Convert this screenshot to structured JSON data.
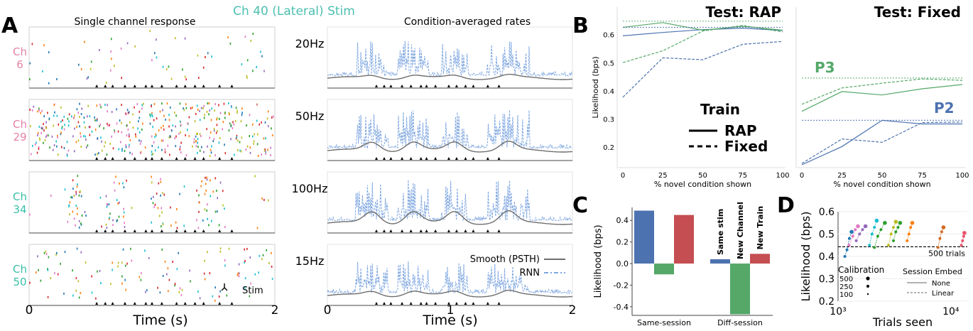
{
  "panel_letters": {
    "a": "A",
    "b": "B",
    "c": "C",
    "d": "D"
  },
  "panel_a": {
    "title": "Ch 40 (Lateral) Stim",
    "left_title": "Single channel response",
    "right_title": "Condition-averaged rates",
    "channels": [
      {
        "label": "Ch\n6",
        "color": "#e382a8"
      },
      {
        "label": "Ch\n29",
        "color": "#e382a8"
      },
      {
        "label": "Ch\n34",
        "color": "#3bbfa8"
      },
      {
        "label": "Ch\n50",
        "color": "#3bbfa8"
      }
    ],
    "conditions": [
      "20Hz",
      "50Hz",
      "100Hz",
      "15Hz"
    ],
    "xlabel": "Time (s)",
    "xticks": [
      "0",
      "1",
      "2"
    ],
    "stim_label": "Stim",
    "legend": {
      "smooth": "Smooth (PSTH)",
      "rnn": "RNN"
    }
  },
  "colors": {
    "blue": "#4c72b0",
    "green": "#55a868",
    "red": "#c44e52",
    "light_blue": "#7ea6e0",
    "gray": "#6e6e6e",
    "teal": "#4dbfb0"
  },
  "chart_data": [
    {
      "type": "line",
      "title": "Test: RAP",
      "xlabel": "% novel condition shown",
      "ylabel": "Likelihood (bps)",
      "x": [
        0,
        25,
        50,
        75,
        100
      ],
      "ylim": [
        0.13,
        0.7
      ],
      "yticks": [
        0.2,
        0.3,
        0.4,
        0.5,
        0.6
      ],
      "series": [
        {
          "color": "blue",
          "style": "solid",
          "values": [
            0.598,
            0.61,
            0.62,
            0.625,
            0.617
          ]
        },
        {
          "color": "blue",
          "style": "dashed",
          "values": [
            0.38,
            0.52,
            0.513,
            0.568,
            0.578
          ]
        },
        {
          "color": "green",
          "style": "solid",
          "values": [
            0.628,
            0.645,
            0.618,
            0.632,
            0.618
          ]
        },
        {
          "color": "green",
          "style": "dashed",
          "values": [
            0.503,
            0.545,
            0.615,
            0.635,
            0.612
          ]
        },
        {
          "color": "green",
          "style": "dotted",
          "values": [
            0.65,
            0.65,
            0.65,
            0.65,
            0.65
          ]
        },
        {
          "color": "blue",
          "style": "dotted",
          "values": [
            0.628,
            0.628,
            0.628,
            0.628,
            0.628
          ]
        }
      ],
      "legend": {
        "title": "Train",
        "rap": "RAP",
        "fixed": "Fixed"
      }
    },
    {
      "type": "line",
      "title": "Test: Fixed",
      "xlabel": "% novel condition shown",
      "x": [
        0,
        25,
        50,
        75,
        100
      ],
      "ylim": [
        0.13,
        0.7
      ],
      "series": [
        {
          "name": "P3",
          "color": "green",
          "style": "solid",
          "values": [
            0.33,
            0.4,
            0.388,
            0.41,
            0.425
          ]
        },
        {
          "color": "green",
          "style": "dashed",
          "values": [
            0.355,
            0.413,
            0.43,
            0.445,
            0.44
          ]
        },
        {
          "color": "green",
          "style": "dotted",
          "values": [
            0.448,
            0.448,
            0.448,
            0.448,
            0.448
          ]
        },
        {
          "name": "P2",
          "color": "blue",
          "style": "solid",
          "values": [
            0.14,
            0.205,
            0.298,
            0.285,
            0.285
          ]
        },
        {
          "color": "blue",
          "style": "dashed",
          "values": [
            0.145,
            0.232,
            0.22,
            0.29,
            0.292
          ]
        },
        {
          "color": "blue",
          "style": "dotted",
          "values": [
            0.298,
            0.298,
            0.298,
            0.298,
            0.298
          ]
        }
      ]
    },
    {
      "type": "bar",
      "ylabel": "Likelihood (bps)",
      "categories": [
        "Same-session",
        "Diff-session"
      ],
      "ylim": [
        -0.48,
        0.52
      ],
      "yticks": [
        -0.4,
        -0.2,
        0.0,
        0.2,
        0.4
      ],
      "series": [
        {
          "name": "Same stim",
          "color": "blue",
          "values": [
            0.49,
            0.04
          ]
        },
        {
          "name": "New Channel",
          "color": "green",
          "values": [
            -0.1,
            -0.47
          ]
        },
        {
          "name": "New Train",
          "color": "red",
          "values": [
            0.45,
            0.09
          ]
        }
      ]
    },
    {
      "type": "scatter",
      "xlabel": "Trials seen",
      "ylabel": "Likelihood (bps)",
      "xscale": "log",
      "xlim": [
        1000,
        14000
      ],
      "ylim": [
        0.2,
        0.6
      ],
      "yticks": [
        0.2,
        0.3,
        0.4,
        0.5,
        0.6
      ],
      "xticks": [
        "10³",
        "10⁴"
      ],
      "reference": {
        "label": "500 trials",
        "value": 0.443
      },
      "legend": {
        "calibration_title": "Calibration",
        "calibration": [
          "500",
          "250",
          "100"
        ],
        "embed_title": "Session Embed",
        "embed": [
          "None",
          "Linear"
        ]
      },
      "groups": [
        {
          "color": "#1f77b4",
          "points": [
            [
              1150,
              0.4
            ],
            [
              1200,
              0.43
            ],
            [
              1260,
              0.48
            ],
            [
              1320,
              0.51
            ]
          ]
        },
        {
          "color": "#e377c2",
          "points": [
            [
              1250,
              0.45
            ],
            [
              1350,
              0.49
            ],
            [
              1420,
              0.52
            ],
            [
              1500,
              0.535
            ]
          ]
        },
        {
          "color": "#9467bd",
          "points": [
            [
              1450,
              0.47
            ],
            [
              1550,
              0.5
            ],
            [
              1650,
              0.52
            ],
            [
              1750,
              0.535
            ]
          ]
        },
        {
          "color": "#17becf",
          "points": [
            [
              1900,
              0.45
            ],
            [
              2000,
              0.5
            ],
            [
              2100,
              0.53
            ],
            [
              2200,
              0.56
            ]
          ]
        },
        {
          "color": "#2ca02c",
          "points": [
            [
              2100,
              0.44
            ],
            [
              2250,
              0.49
            ],
            [
              2400,
              0.52
            ],
            [
              2600,
              0.55
            ]
          ]
        },
        {
          "color": "#bcbd22",
          "points": [
            [
              2800,
              0.45
            ],
            [
              2950,
              0.5
            ],
            [
              3100,
              0.53
            ],
            [
              3250,
              0.555
            ]
          ]
        },
        {
          "color": "#2ca02c",
          "points": [
            [
              3100,
              0.47
            ],
            [
              3250,
              0.51
            ],
            [
              3400,
              0.53
            ],
            [
              3550,
              0.55
            ]
          ]
        },
        {
          "color": "#ff7f0e",
          "points": [
            [
              4100,
              0.47
            ],
            [
              4250,
              0.5
            ],
            [
              4400,
              0.53
            ],
            [
              4550,
              0.55
            ]
          ]
        },
        {
          "color": "#d2691e",
          "points": [
            [
              7700,
              0.44
            ],
            [
              8000,
              0.48
            ],
            [
              8300,
              0.51
            ],
            [
              8600,
              0.53
            ]
          ]
        },
        {
          "color": "#e8506a",
          "points": [
            [
              12400,
              0.45
            ],
            [
              12700,
              0.47
            ],
            [
              13000,
              0.49
            ],
            [
              13200,
              0.505
            ]
          ]
        }
      ]
    }
  ]
}
